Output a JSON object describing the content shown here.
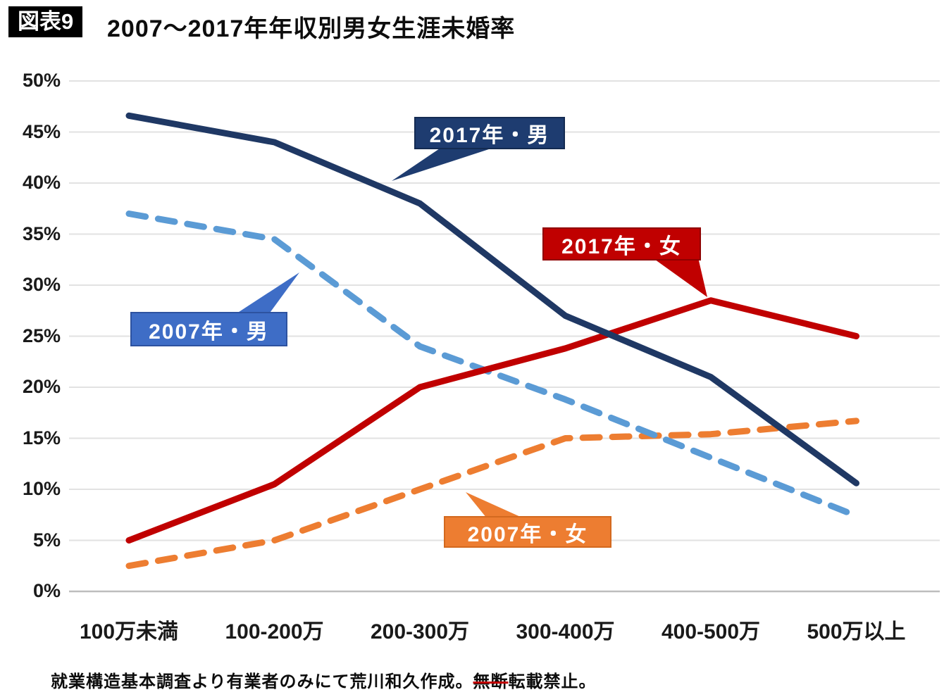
{
  "figure_label": "図表9",
  "title": "2007〜2017年年収別男女生涯未婚率",
  "footer": {
    "prefix": "就業構造基本調査より有業者のみにて荒川和久作成。",
    "struck": "無断",
    "suffix": "転載禁止。"
  },
  "colors": {
    "background": "#ffffff",
    "gridline": "#e2e2e2",
    "zero_axis": "#bdbdbd",
    "tick_text": "#1a1a1a",
    "navy": "#1f3864",
    "light_blue": "#5b9bd5",
    "red": "#c00000",
    "orange": "#ed7d31"
  },
  "chart_data": {
    "type": "line",
    "title": "2007〜2017年年収別男女生涯未婚率",
    "xlabel": "",
    "ylabel": "",
    "unit": "%",
    "ylim": [
      0,
      50
    ],
    "ytick_step": 5,
    "grid": true,
    "legend_position": "callouts-on-lines",
    "categories": [
      "100万未満",
      "100-200万",
      "200-300万",
      "300-400万",
      "400-500万",
      "500万以上"
    ],
    "series": [
      {
        "name": "2017年・男",
        "style": "solid",
        "line_color": "#1f3864",
        "box_color": "#1e3c70",
        "box_border": "#142b52",
        "values": [
          46.6,
          44.0,
          38.0,
          27.0,
          21.0,
          10.6
        ]
      },
      {
        "name": "2007年・男",
        "style": "dashed",
        "line_color": "#5b9bd5",
        "box_color": "#3e6dc6",
        "box_border": "#2d52a0",
        "values": [
          37.0,
          34.5,
          24.0,
          18.8,
          13.1,
          7.4
        ]
      },
      {
        "name": "2017年・女",
        "style": "solid",
        "line_color": "#c00000",
        "box_color": "#c00000",
        "box_border": "#8f0000",
        "values": [
          5.0,
          10.5,
          20.0,
          23.8,
          28.5,
          25.0
        ]
      },
      {
        "name": "2007年・女",
        "style": "dashed",
        "line_color": "#ed7d31",
        "box_color": "#ed7d31",
        "box_border": "#d3691f",
        "values": [
          2.5,
          5.0,
          10.0,
          15.0,
          15.4,
          16.7
        ]
      }
    ]
  }
}
